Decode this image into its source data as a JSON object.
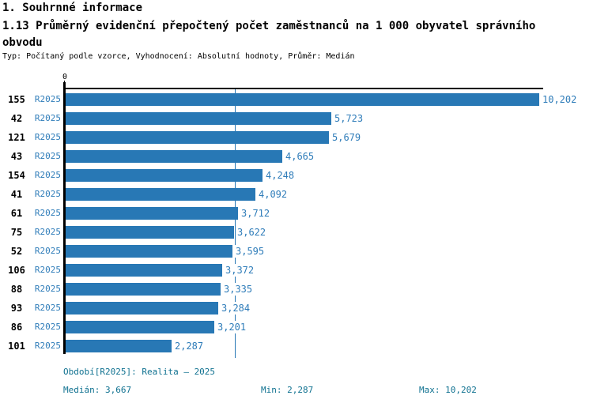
{
  "header": {
    "section": "1. Souhrnné informace",
    "title": "1.13 Průměrný evidenční přepočtený počet zaměstnanců na 1 000 obyvatel správního obvodu",
    "subtitle": "Typ: Počítaný podle vzorce, Vyhodnocení: Absolutní hodnoty, Průměr: Medián"
  },
  "chart": {
    "axis_zero_label": "0",
    "median_value": 3.667,
    "max_value": 10.202,
    "rows": [
      {
        "category": "155",
        "period": "R2025",
        "value": 10.202,
        "value_display": "10,202"
      },
      {
        "category": "42",
        "period": "R2025",
        "value": 5.723,
        "value_display": "5,723"
      },
      {
        "category": "121",
        "period": "R2025",
        "value": 5.679,
        "value_display": "5,679"
      },
      {
        "category": "43",
        "period": "R2025",
        "value": 4.665,
        "value_display": "4,665"
      },
      {
        "category": "154",
        "period": "R2025",
        "value": 4.248,
        "value_display": "4,248"
      },
      {
        "category": "41",
        "period": "R2025",
        "value": 4.092,
        "value_display": "4,092"
      },
      {
        "category": "61",
        "period": "R2025",
        "value": 3.712,
        "value_display": "3,712"
      },
      {
        "category": "75",
        "period": "R2025",
        "value": 3.622,
        "value_display": "3,622"
      },
      {
        "category": "52",
        "period": "R2025",
        "value": 3.595,
        "value_display": "3,595"
      },
      {
        "category": "106",
        "period": "R2025",
        "value": 3.372,
        "value_display": "3,372"
      },
      {
        "category": "88",
        "period": "R2025",
        "value": 3.335,
        "value_display": "3,335"
      },
      {
        "category": "93",
        "period": "R2025",
        "value": 3.284,
        "value_display": "3,284"
      },
      {
        "category": "86",
        "period": "R2025",
        "value": 3.201,
        "value_display": "3,201"
      },
      {
        "category": "101",
        "period": "R2025",
        "value": 2.287,
        "value_display": "2,287"
      }
    ]
  },
  "footer": {
    "period_info": "Období[R2025]: Realita – 2025",
    "median": "Medián: 3,667",
    "min": "Min: 2,287",
    "max": "Max: 10,202"
  },
  "colors": {
    "bar": "#2878b5",
    "value_text": "#2e7cb9",
    "footer_text": "#0f7190",
    "axis": "#000000"
  },
  "chart_data": {
    "type": "bar",
    "orientation": "horizontal",
    "title": "1.13 Průměrný evidenční přepočtený počet zaměstnanců na 1 000 obyvatel správního obvodu",
    "subtitle": "Typ: Počítaný podle vzorce, Vyhodnocení: Absolutní hodnoty, Průměr: Medián",
    "categories": [
      "155",
      "42",
      "121",
      "43",
      "154",
      "41",
      "61",
      "75",
      "52",
      "106",
      "88",
      "93",
      "86",
      "101"
    ],
    "series": [
      {
        "name": "R2025",
        "values": [
          10.202,
          5.723,
          5.679,
          4.665,
          4.248,
          4.092,
          3.712,
          3.622,
          3.595,
          3.372,
          3.335,
          3.284,
          3.201,
          2.287
        ]
      }
    ],
    "data_labels": [
      "10,202",
      "5,723",
      "5,679",
      "4,665",
      "4,248",
      "4,092",
      "3,712",
      "3,622",
      "3,595",
      "3,372",
      "3,335",
      "3,284",
      "3,201",
      "2,287"
    ],
    "xlabel": "",
    "ylabel": "",
    "xlim": [
      0,
      10.202
    ],
    "x_ticks": [
      0
    ],
    "median_line": 3.667,
    "stats": {
      "median": 3.667,
      "min": 2.287,
      "max": 10.202
    },
    "legend_position": "none",
    "grid": false
  }
}
